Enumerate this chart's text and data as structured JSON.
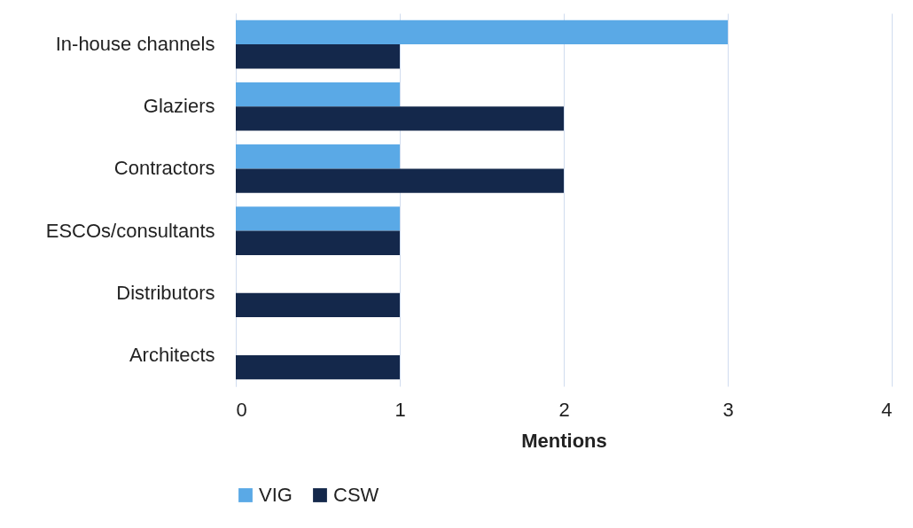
{
  "chart_data": {
    "type": "bar",
    "orientation": "horizontal",
    "categories": [
      "In-house channels",
      "Glaziers",
      "Contractors",
      "ESCOs/consultants",
      "Distributors",
      "Architects"
    ],
    "series": [
      {
        "name": "VIG",
        "color": "#5aa9e6",
        "values": [
          3,
          1,
          1,
          1,
          null,
          null
        ]
      },
      {
        "name": "CSW",
        "color": "#14284b",
        "values": [
          1,
          2,
          2,
          1,
          1,
          1
        ]
      }
    ],
    "xlabel": "Mentions",
    "xlim": [
      0,
      4
    ],
    "xticks": [
      0,
      1,
      2,
      3,
      4
    ],
    "grid": "x",
    "legend": "bottom"
  }
}
